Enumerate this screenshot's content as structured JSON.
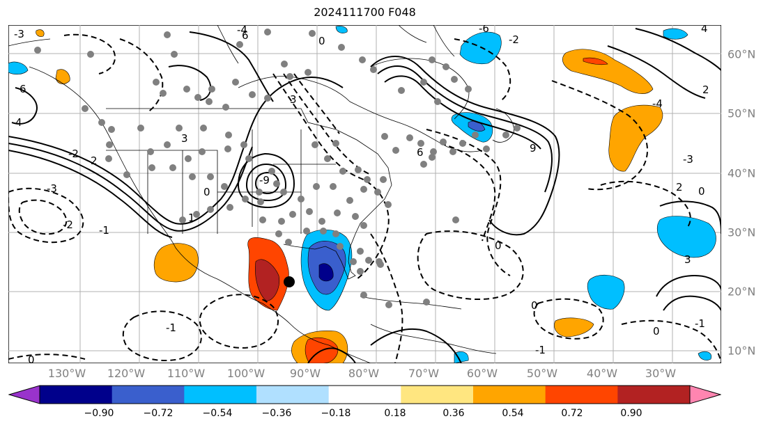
{
  "title": "2024111700 F048",
  "lon_labels": [
    "130°W",
    "120°W",
    "110°W",
    "100°W",
    "90°W",
    "80°W",
    "70°W",
    "60°W",
    "50°W",
    "40°W",
    "30°W"
  ],
  "lat_labels": [
    "60°N",
    "50°N",
    "40°N",
    "30°N",
    "20°N",
    "10°N"
  ],
  "colorbar": {
    "ticks": [
      "−0.90",
      "−0.72",
      "−0.54",
      "−0.36",
      "−0.18",
      "0.18",
      "0.36",
      "0.54",
      "0.72",
      "0.90"
    ],
    "colors": [
      "#9933cc",
      "#00008b",
      "#3a5fcd",
      "#00bfff",
      "#b0e0ff",
      "#ffffff",
      "#ffe680",
      "#ffa500",
      "#ff4500",
      "#b22222",
      "#ff85b0"
    ]
  },
  "contour_labels": [
    "-3",
    "-2",
    "-1",
    "0",
    "0",
    "0",
    "0",
    "1",
    "2",
    "3",
    "4",
    "-4",
    "6",
    "6",
    "-6",
    "9",
    "-9",
    "-3",
    "-2",
    "-1",
    "2",
    "3",
    "4",
    "-4",
    "0",
    "-3",
    "-1",
    "0",
    "-2",
    "-1",
    "0",
    "2",
    "3",
    "6"
  ],
  "marker": "storm-center-dot"
}
